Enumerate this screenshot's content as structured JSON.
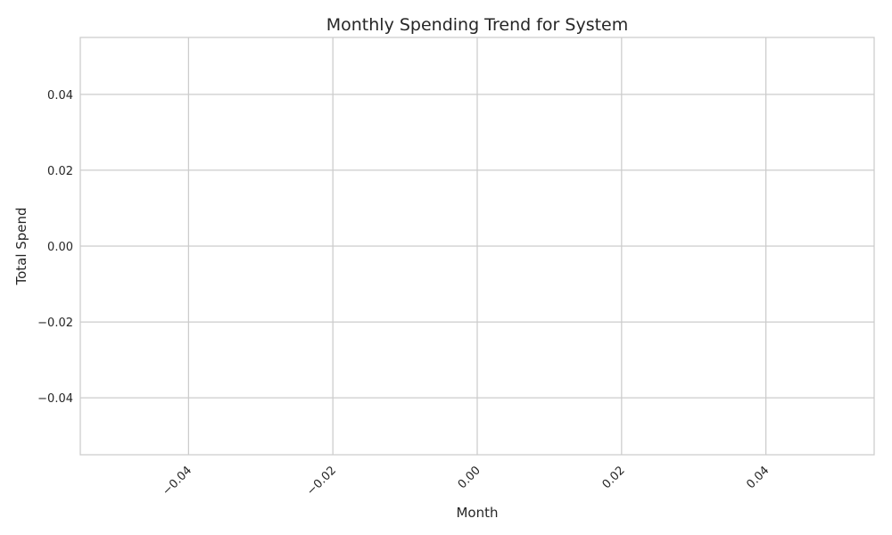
{
  "colors": {
    "background": "#ffffff",
    "grid": "#cccccc",
    "spine": "#cccccc",
    "text": "#262626"
  },
  "chart_data": {
    "type": "line",
    "title": "Monthly Spending Trend for System",
    "xlabel": "Month",
    "ylabel": "Total Spend",
    "xlim": [
      -0.055,
      0.055
    ],
    "ylim": [
      -0.055,
      0.055
    ],
    "x_ticks": [
      -0.04,
      -0.02,
      0.0,
      0.02,
      0.04
    ],
    "x_tick_labels": [
      "−0.04",
      "−0.02",
      "0.00",
      "0.02",
      "0.04"
    ],
    "y_ticks": [
      0.04,
      0.02,
      0.0,
      -0.02,
      -0.04
    ],
    "y_tick_labels": [
      "0.04",
      "0.02",
      "0.00",
      "−0.02",
      "−0.04"
    ],
    "x_tick_rotation": 45,
    "grid": true,
    "series": [
      {
        "values": []
      }
    ]
  }
}
